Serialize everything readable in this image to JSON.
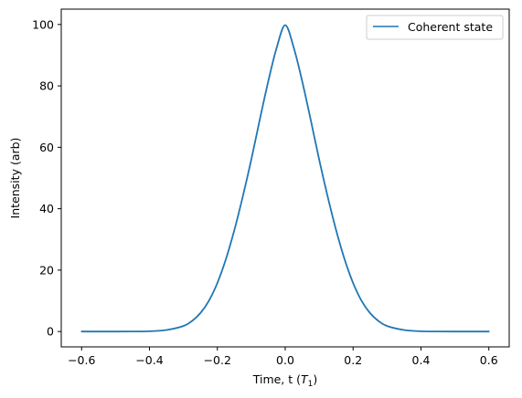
{
  "chart_data": {
    "type": "line",
    "title": "",
    "xlabel": "Time, t (",
    "xlabel_symbol": "T",
    "xlabel_subscript": "1",
    "xlabel_suffix": ")",
    "ylabel": "Intensity (arb)",
    "xlim": [
      -0.66,
      0.66
    ],
    "ylim": [
      -5,
      105
    ],
    "x_ticks": [
      -0.6,
      -0.4,
      -0.2,
      0.0,
      0.2,
      0.4,
      0.6
    ],
    "x_tick_labels": [
      "−0.6",
      "−0.4",
      "−0.2",
      "0.0",
      "0.2",
      "0.4",
      "0.6"
    ],
    "y_ticks": [
      0,
      20,
      40,
      60,
      80,
      100
    ],
    "y_tick_labels": [
      "0",
      "20",
      "40",
      "60",
      "80",
      "100"
    ],
    "grid": false,
    "legend_position": "top-right",
    "series": [
      {
        "name": "Coherent state",
        "color": "#1f77b4",
        "x": [
          -0.6,
          -0.55,
          -0.5,
          -0.45,
          -0.4,
          -0.35,
          -0.3,
          -0.275,
          -0.25,
          -0.225,
          -0.2,
          -0.175,
          -0.15,
          -0.125,
          -0.1,
          -0.075,
          -0.05,
          -0.025,
          0.0,
          0.025,
          0.05,
          0.075,
          0.1,
          0.125,
          0.15,
          0.175,
          0.2,
          0.225,
          0.25,
          0.275,
          0.3,
          0.35,
          0.4,
          0.45,
          0.5,
          0.55,
          0.6
        ],
        "y": [
          0.0,
          0.0,
          0.0,
          0.01,
          0.1,
          0.5,
          1.8,
          3.4,
          6.0,
          10.0,
          15.8,
          23.5,
          33.0,
          44.0,
          56.0,
          69.0,
          81.5,
          92.5,
          99.8,
          92.5,
          81.5,
          69.0,
          56.0,
          44.0,
          33.0,
          23.5,
          15.8,
          10.0,
          6.0,
          3.4,
          1.8,
          0.5,
          0.1,
          0.01,
          0.0,
          0.0,
          0.0
        ]
      }
    ]
  }
}
